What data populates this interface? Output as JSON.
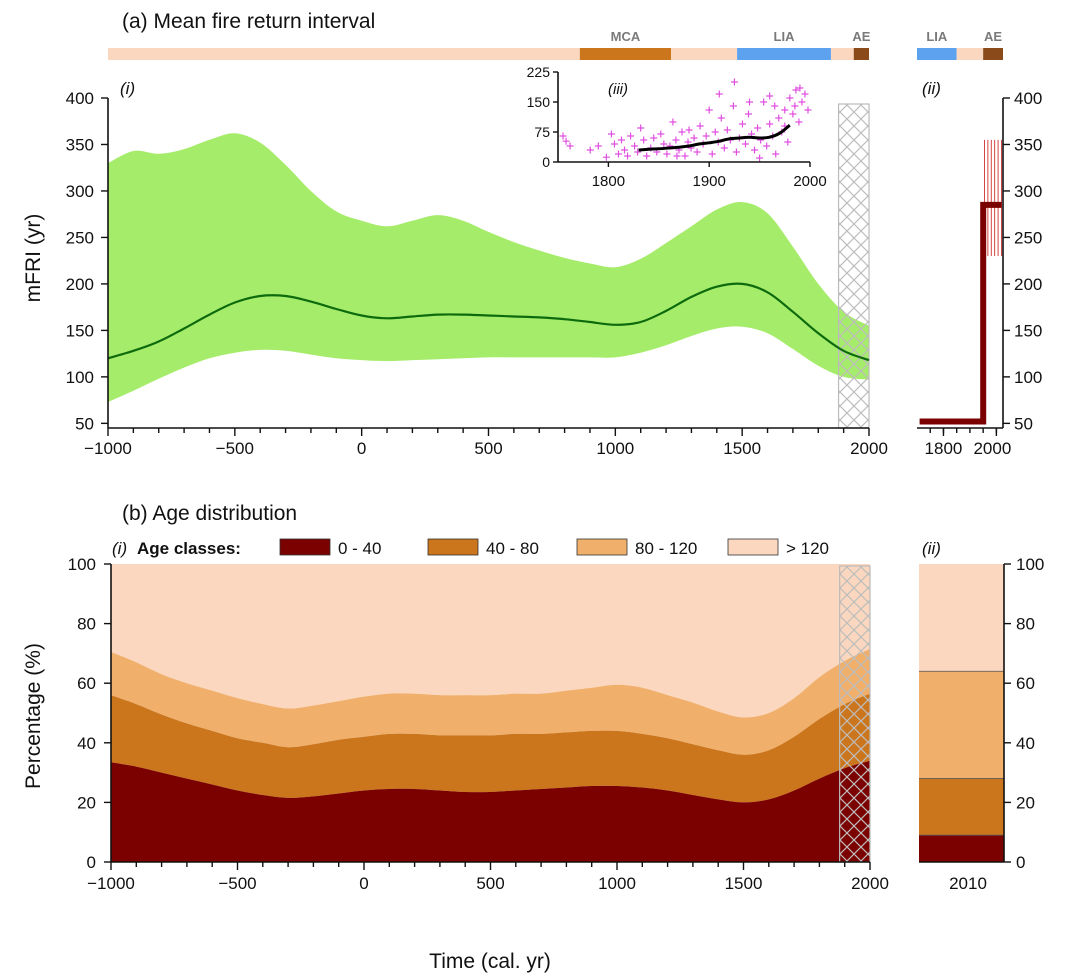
{
  "colors": {
    "ci_band": "#a6ec6b",
    "mean_line": "#0d6b0d",
    "dark_red": "#7b0000",
    "brown": "#cb761c",
    "tan": "#f0b06c",
    "peach": "#fbd7bf",
    "lia_blue": "#5ca2ef",
    "ae_brown": "#8a4a1a",
    "inset_points": "#e04fe0",
    "inset_line": "#000000",
    "hatch": "#bbbbbb"
  },
  "chart_data": [
    {
      "id": "a_i",
      "type": "area",
      "panel_title": "(a) Mean fire return interval",
      "panel_label": "(i)",
      "ylabel": "mFRI (yr)",
      "xlim": [
        -1000,
        2000
      ],
      "ylim": [
        45,
        400
      ],
      "xticks": [
        -1000,
        -500,
        0,
        500,
        1000,
        1500,
        2000
      ],
      "xtick_labels": [
        "−1000",
        "−500",
        "0",
        "500",
        "1000",
        "1500",
        "2000"
      ],
      "yticks": [
        50,
        100,
        150,
        200,
        250,
        300,
        350,
        400
      ],
      "hatched_range": [
        1880,
        2000
      ],
      "x": [
        -1000,
        -900,
        -800,
        -700,
        -600,
        -500,
        -400,
        -300,
        -200,
        -100,
        0,
        100,
        200,
        300,
        400,
        500,
        600,
        700,
        800,
        900,
        1000,
        1100,
        1200,
        1300,
        1400,
        1500,
        1600,
        1700,
        1800,
        1900,
        2000
      ],
      "mean": [
        120,
        128,
        138,
        152,
        167,
        180,
        187,
        187,
        181,
        173,
        166,
        163,
        165,
        167,
        167,
        166,
        165,
        164,
        162,
        159,
        156,
        159,
        171,
        186,
        197,
        200,
        191,
        170,
        147,
        128,
        118
      ],
      "upper": [
        330,
        343,
        340,
        345,
        355,
        362,
        352,
        328,
        300,
        278,
        268,
        262,
        268,
        274,
        268,
        256,
        245,
        236,
        228,
        222,
        218,
        227,
        244,
        262,
        280,
        288,
        276,
        240,
        200,
        170,
        155
      ],
      "lower": [
        73,
        85,
        98,
        110,
        120,
        126,
        129,
        128,
        124,
        120,
        118,
        117,
        118,
        119,
        120,
        121,
        121,
        121,
        121,
        121,
        121,
        126,
        134,
        144,
        152,
        154,
        147,
        130,
        112,
        100,
        97
      ]
    },
    {
      "id": "a_ii",
      "type": "line",
      "panel_label": "(ii)",
      "xlim": [
        1700,
        2025
      ],
      "ylim": [
        45,
        400
      ],
      "xticks": [
        1800,
        2000
      ],
      "xtick_labels": [
        "1800",
        "2000"
      ],
      "yticks": [
        50,
        100,
        150,
        200,
        250,
        300,
        350,
        400
      ],
      "x": [
        1710,
        1950,
        1950,
        2020
      ],
      "values": [
        52,
        52,
        285,
        285
      ],
      "error_x_range": [
        1955,
        2020
      ],
      "error_range": [
        230,
        355
      ]
    },
    {
      "id": "a_iii",
      "type": "scatter",
      "panel_label": "(iii)",
      "xlim": [
        1750,
        2000
      ],
      "ylim": [
        0,
        225
      ],
      "xticks": [
        1800,
        1900,
        2000
      ],
      "yticks": [
        0,
        75,
        150,
        225
      ],
      "points": [
        [
          1755,
          65
        ],
        [
          1758,
          52
        ],
        [
          1762,
          40
        ],
        [
          1782,
          30
        ],
        [
          1790,
          40
        ],
        [
          1798,
          12
        ],
        [
          1803,
          70
        ],
        [
          1806,
          45
        ],
        [
          1810,
          20
        ],
        [
          1813,
          55
        ],
        [
          1816,
          30
        ],
        [
          1819,
          15
        ],
        [
          1822,
          65
        ],
        [
          1826,
          40
        ],
        [
          1829,
          25
        ],
        [
          1832,
          85
        ],
        [
          1835,
          55
        ],
        [
          1838,
          15
        ],
        [
          1842,
          35
        ],
        [
          1845,
          60
        ],
        [
          1848,
          25
        ],
        [
          1852,
          70
        ],
        [
          1855,
          45
        ],
        [
          1858,
          20
        ],
        [
          1861,
          40
        ],
        [
          1864,
          100
        ],
        [
          1867,
          55
        ],
        [
          1870,
          30
        ],
        [
          1873,
          75
        ],
        [
          1876,
          15
        ],
        [
          1879,
          50
        ],
        [
          1882,
          35
        ],
        [
          1885,
          60
        ],
        [
          1888,
          25
        ],
        [
          1891,
          90
        ],
        [
          1894,
          45
        ],
        [
          1897,
          65
        ],
        [
          1900,
          130
        ],
        [
          1903,
          20
        ],
        [
          1906,
          75
        ],
        [
          1909,
          50
        ],
        [
          1912,
          110
        ],
        [
          1915,
          35
        ],
        [
          1918,
          80
        ],
        [
          1921,
          55
        ],
        [
          1924,
          140
        ],
        [
          1927,
          25
        ],
        [
          1930,
          60
        ],
        [
          1933,
          95
        ],
        [
          1936,
          45
        ],
        [
          1939,
          120
        ],
        [
          1942,
          70
        ],
        [
          1945,
          30
        ],
        [
          1948,
          85
        ],
        [
          1951,
          55
        ],
        [
          1954,
          150
        ],
        [
          1957,
          40
        ],
        [
          1960,
          95
        ],
        [
          1963,
          65
        ],
        [
          1966,
          20
        ],
        [
          1969,
          110
        ],
        [
          1972,
          75
        ],
        [
          1975,
          130
        ],
        [
          1978,
          50
        ],
        [
          1980,
          160
        ],
        [
          1983,
          120
        ],
        [
          1986,
          180
        ],
        [
          1989,
          100
        ],
        [
          1992,
          150
        ],
        [
          1995,
          170
        ],
        [
          1998,
          130
        ],
        [
          1985,
          140
        ],
        [
          1925,
          200
        ],
        [
          1910,
          170
        ],
        [
          1940,
          150
        ],
        [
          1960,
          165
        ],
        [
          1975,
          90
        ],
        [
          1990,
          185
        ],
        [
          1868,
          15
        ],
        [
          1880,
          80
        ],
        [
          1950,
          10
        ],
        [
          1965,
          140
        ]
      ],
      "line_x": [
        1830,
        1840,
        1850,
        1860,
        1870,
        1880,
        1890,
        1900,
        1910,
        1920,
        1930,
        1940,
        1950,
        1960,
        1970,
        1980
      ],
      "line_y": [
        30,
        32,
        33,
        35,
        37,
        40,
        45,
        48,
        52,
        58,
        60,
        62,
        60,
        62,
        72,
        92
      ]
    },
    {
      "id": "b_i",
      "type": "area",
      "panel_title": "(b) Age distribution",
      "panel_label": "(i)",
      "ylabel": "Percentage (%)",
      "xlabel": "Time (cal. yr)",
      "xlim": [
        -1000,
        2000
      ],
      "ylim": [
        0,
        100
      ],
      "xticks": [
        -1000,
        -500,
        0,
        500,
        1000,
        1500,
        2000
      ],
      "xtick_labels": [
        "−1000",
        "−500",
        "0",
        "500",
        "1000",
        "1500",
        "2000"
      ],
      "yticks": [
        0,
        20,
        40,
        60,
        80,
        100
      ],
      "hatched_range": [
        1880,
        2000
      ],
      "legend_title": "Age classes:",
      "x": [
        -1000,
        -900,
        -800,
        -700,
        -600,
        -500,
        -400,
        -300,
        -200,
        -100,
        0,
        100,
        200,
        300,
        400,
        500,
        600,
        700,
        800,
        900,
        1000,
        1100,
        1200,
        1300,
        1400,
        1500,
        1600,
        1700,
        1800,
        1900,
        2000
      ],
      "series": [
        {
          "name": "0 - 40",
          "values": [
            33.5,
            32,
            30,
            28,
            26,
            24,
            22.5,
            21.5,
            22,
            23,
            24,
            24.5,
            24.5,
            24,
            23.5,
            23.5,
            24,
            24.5,
            25,
            25.5,
            25.5,
            25,
            24,
            22.5,
            21,
            20,
            21,
            24,
            28,
            31.5,
            34
          ]
        },
        {
          "name": "40 - 80",
          "values": [
            22.5,
            21,
            19.5,
            18.5,
            18,
            17.5,
            17.5,
            17,
            17.5,
            18,
            18,
            18.5,
            18.5,
            18.5,
            19,
            19,
            19,
            18.5,
            18.5,
            18.5,
            18.5,
            18,
            17.5,
            17,
            16.5,
            16,
            16.5,
            18,
            20,
            21.5,
            22.5
          ]
        },
        {
          "name": "80 - 120",
          "values": [
            14.5,
            14,
            13.5,
            13.5,
            13.5,
            13.5,
            13,
            13,
            13,
            13,
            13.5,
            13.5,
            13.5,
            13.5,
            13.5,
            13.5,
            13.5,
            13.5,
            14,
            14.5,
            15.5,
            15.5,
            14.5,
            14,
            13,
            12.5,
            12.5,
            13,
            14,
            14.5,
            15
          ]
        },
        {
          "name": "> 120",
          "values": [
            29.5,
            33,
            37,
            40,
            42.5,
            45,
            47,
            48.5,
            47.5,
            46,
            44.5,
            43.5,
            43.5,
            44,
            44,
            44,
            43.5,
            43.5,
            42.5,
            41.5,
            40.5,
            41.5,
            44,
            46.5,
            49.5,
            51.5,
            50,
            45,
            38,
            32.5,
            28.5
          ]
        }
      ]
    },
    {
      "id": "b_ii",
      "type": "bar",
      "panel_label": "(ii)",
      "categories": [
        "2010"
      ],
      "ylim": [
        0,
        100
      ],
      "yticks": [
        0,
        20,
        40,
        60,
        80,
        100
      ],
      "series": [
        {
          "name": "0 - 40",
          "values": [
            9
          ]
        },
        {
          "name": "40 - 80",
          "values": [
            19
          ]
        },
        {
          "name": "80 - 120",
          "values": [
            36
          ]
        },
        {
          "name": "> 120",
          "values": [
            36
          ]
        }
      ]
    }
  ],
  "periods": {
    "main": [
      {
        "label": "",
        "start": -1000,
        "end": 860,
        "color": "#fbd7bf"
      },
      {
        "label": "MCA",
        "start": 860,
        "end": 1220,
        "color": "#cb761c"
      },
      {
        "label": "",
        "start": 1220,
        "end": 1480,
        "color": "#fbd7bf"
      },
      {
        "label": "LIA",
        "start": 1480,
        "end": 1850,
        "color": "#5ca2ef"
      },
      {
        "label": "",
        "start": 1850,
        "end": 1940,
        "color": "#fbd7bf"
      },
      {
        "label": "AE",
        "start": 1940,
        "end": 2000,
        "color": "#8a4a1a"
      }
    ],
    "side": [
      {
        "label": "LIA",
        "start": 1700,
        "end": 1850,
        "color": "#5ca2ef"
      },
      {
        "label": "",
        "start": 1850,
        "end": 1950,
        "color": "#fbd7bf"
      },
      {
        "label": "AE",
        "start": 1950,
        "end": 2025,
        "color": "#8a4a1a"
      }
    ]
  }
}
